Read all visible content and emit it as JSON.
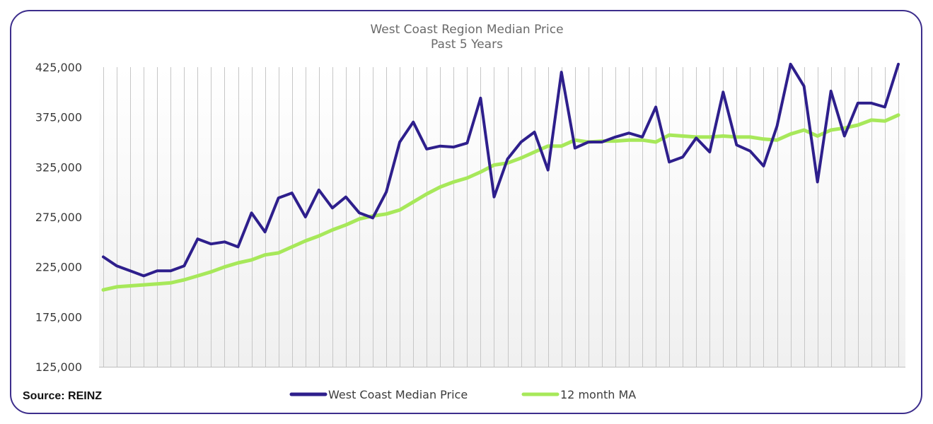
{
  "source_label": "Source: REINZ",
  "chart_data": {
    "type": "line",
    "title": "West Coast Region Median Price",
    "subtitle": "Past 5 Years",
    "xlabel": "",
    "ylabel": "",
    "ylim": [
      125000,
      425000
    ],
    "yticks": [
      425000,
      375000,
      325000,
      275000,
      225000,
      175000,
      125000
    ],
    "ytick_labels": [
      "425,000",
      "375,000",
      "325,000",
      "275,000",
      "225,000",
      "175,000",
      "125,000"
    ],
    "grid": "vertical",
    "legend_position": "bottom",
    "series": [
      {
        "name": "West Coast Median Price",
        "color": "#2e1f8c",
        "values": [
          235000,
          226000,
          221000,
          216000,
          221000,
          221000,
          226000,
          253000,
          248000,
          250000,
          245000,
          279000,
          260000,
          294000,
          299000,
          275000,
          302000,
          284000,
          295000,
          279000,
          274000,
          300000,
          350000,
          370000,
          343000,
          346000,
          345000,
          349000,
          394000,
          295000,
          333000,
          350000,
          360000,
          322000,
          420000,
          344000,
          350000,
          350000,
          355000,
          359000,
          355000,
          385000,
          330000,
          335000,
          354000,
          340000,
          400000,
          347000,
          341000,
          326000,
          366000,
          428000,
          406000,
          310000,
          401000,
          356000,
          389000,
          389000,
          385000,
          428000
        ]
      },
      {
        "name": "12 month MA",
        "color": "#a7e85a",
        "values": [
          202000,
          205000,
          206000,
          207000,
          208000,
          209000,
          212000,
          216000,
          220000,
          225000,
          229000,
          232000,
          237000,
          239000,
          245000,
          251000,
          256000,
          262000,
          267000,
          273000,
          276000,
          278000,
          282000,
          290000,
          298000,
          305000,
          310000,
          314000,
          320000,
          327000,
          329000,
          334000,
          340000,
          346000,
          346000,
          352000,
          350000,
          351000,
          351000,
          352000,
          352000,
          350000,
          357000,
          356000,
          355000,
          355000,
          356000,
          355000,
          355000,
          353000,
          352000,
          358000,
          362000,
          356000,
          362000,
          364000,
          367000,
          372000,
          371000,
          377000
        ]
      }
    ]
  }
}
